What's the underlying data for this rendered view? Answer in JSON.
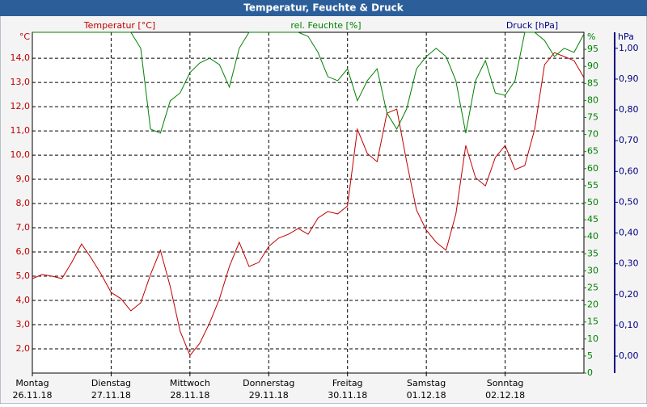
{
  "chart_data": {
    "type": "line",
    "title": "Temperatur, Feuchte & Druck",
    "xlim": [
      0,
      7
    ],
    "xticks": [
      {
        "value": 0,
        "label": "Montag"
      },
      {
        "value": 1,
        "label": "Dienstag"
      },
      {
        "value": 2,
        "label": "Mittwoch"
      },
      {
        "value": 3,
        "label": "Donnerstag"
      },
      {
        "value": 4,
        "label": "Freitag"
      },
      {
        "value": 5,
        "label": "Samstag"
      },
      {
        "value": 6,
        "label": "Sonntag"
      }
    ],
    "xtick_dates": [
      "26.11.18",
      "27.11.18",
      "28.11.18",
      "29.11.18",
      "30.11.18",
      "01.12.18",
      "02.12.18"
    ],
    "ylabel": "Temperatur [°C]",
    "yunit": "°C",
    "ycolor": "#c00000",
    "ylim": [
      1.0,
      15.07
    ],
    "yticks": [
      {
        "value": 2,
        "label": "2,0"
      },
      {
        "value": 3,
        "label": "3,0"
      },
      {
        "value": 4,
        "label": "4,0"
      },
      {
        "value": 5,
        "label": "5,0"
      },
      {
        "value": 6,
        "label": "6,0"
      },
      {
        "value": 7,
        "label": "7,0"
      },
      {
        "value": 8,
        "label": "8,0"
      },
      {
        "value": 9,
        "label": "9,0"
      },
      {
        "value": 10,
        "label": "10,0"
      },
      {
        "value": 11,
        "label": "11,0"
      },
      {
        "value": 12,
        "label": "12,0"
      },
      {
        "value": 13,
        "label": "13,0"
      },
      {
        "value": 14,
        "label": "14,0"
      }
    ],
    "y2label": "rel. Feuchte [%]",
    "y2unit": "%",
    "y2color": "#008000",
    "y2lim": [
      0,
      100
    ],
    "y2ticks": [
      0,
      5,
      10,
      15,
      20,
      25,
      30,
      35,
      40,
      45,
      50,
      55,
      60,
      65,
      70,
      75,
      80,
      85,
      90,
      95
    ],
    "y3label": "Druck [hPa]",
    "y3unit": "hPa",
    "y3color": "#000080",
    "y3lim": [
      -0.055,
      1.052
    ],
    "y3ticks": [
      {
        "value": 0,
        "label": "0,00"
      },
      {
        "value": 0.1,
        "label": "0,10"
      },
      {
        "value": 0.2,
        "label": "0,20"
      },
      {
        "value": 0.3,
        "label": "0,30"
      },
      {
        "value": 0.4,
        "label": "0,40"
      },
      {
        "value": 0.5,
        "label": "0,50"
      },
      {
        "value": 0.6,
        "label": "0,60"
      },
      {
        "value": 0.7,
        "label": "0,70"
      },
      {
        "value": 0.8,
        "label": "0,80"
      },
      {
        "value": 0.9,
        "label": "0,90"
      },
      {
        "value": 1,
        "label": "1,00"
      }
    ],
    "grid": true,
    "x": [
      0,
      0.125,
      0.25,
      0.375,
      0.5,
      0.625,
      0.75,
      0.875,
      1,
      1.125,
      1.25,
      1.375,
      1.5,
      1.625,
      1.75,
      1.875,
      2,
      2.125,
      2.25,
      2.375,
      2.5,
      2.625,
      2.75,
      2.875,
      3,
      3.125,
      3.25,
      3.375,
      3.5,
      3.625,
      3.75,
      3.875,
      4,
      4.125,
      4.25,
      4.375,
      4.5,
      4.625,
      4.75,
      4.875,
      5,
      5.125,
      5.25,
      5.375,
      5.5,
      5.625,
      5.75,
      5.875,
      6,
      6.125,
      6.25,
      6.375,
      6.5,
      6.625,
      6.75,
      6.875,
      7
    ],
    "series": [
      {
        "name": "Temperatur",
        "color": "#c00000",
        "axis": "y",
        "values": [
          4.9,
          5.07,
          5.0,
          4.9,
          5.57,
          6.33,
          5.73,
          5.07,
          4.33,
          4.07,
          3.57,
          3.9,
          5.07,
          6.07,
          4.57,
          2.73,
          1.73,
          2.23,
          3.07,
          4.07,
          5.4,
          6.4,
          5.4,
          5.57,
          6.23,
          6.57,
          6.73,
          6.97,
          6.73,
          7.4,
          7.67,
          7.57,
          7.9,
          11.07,
          10.07,
          9.73,
          11.73,
          11.9,
          9.73,
          7.73,
          6.9,
          6.4,
          6.07,
          7.57,
          10.4,
          9.07,
          8.73,
          9.9,
          10.4,
          9.4,
          9.57,
          11.07,
          13.73,
          14.23,
          14.07,
          13.9,
          13.2
        ]
      },
      {
        "name": "rel. Feuchte",
        "color": "#008000",
        "axis": "y2",
        "values": [
          100,
          100,
          100,
          100,
          100,
          100,
          100,
          100,
          100,
          100,
          100,
          95.3,
          71.6,
          70.4,
          79.9,
          82.2,
          88.2,
          91,
          92.4,
          90.5,
          83.9,
          95.3,
          100,
          100,
          100,
          100,
          100,
          100,
          98.8,
          94.1,
          87,
          85.8,
          89.3,
          79.9,
          85.8,
          89.3,
          76.3,
          71.6,
          77.5,
          89.3,
          92.9,
          95.3,
          92.9,
          85.8,
          70.4,
          85.8,
          91.7,
          82.2,
          81.5,
          85.8,
          100,
          100,
          97.6,
          92.9,
          95.3,
          94.1,
          99.5
        ]
      }
    ]
  }
}
